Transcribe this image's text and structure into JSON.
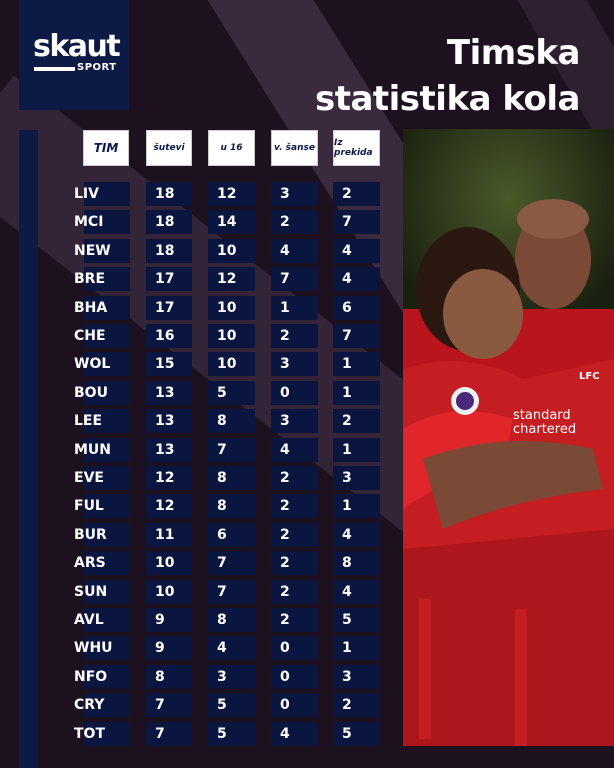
{
  "brand": {
    "name": "skaut",
    "sub": "SPORT"
  },
  "title": {
    "line1": "Timska",
    "line2": "statistika kola"
  },
  "headers": [
    "TIM",
    "šutevi",
    "u 16",
    "v. šanse",
    "Iz prekida"
  ],
  "rows": [
    {
      "team": "LIV",
      "shots": "18",
      "in16": "12",
      "chances": "3",
      "setpieces": "2"
    },
    {
      "team": "MCI",
      "shots": "18",
      "in16": "14",
      "chances": "2",
      "setpieces": "7"
    },
    {
      "team": "NEW",
      "shots": "18",
      "in16": "10",
      "chances": "4",
      "setpieces": "4"
    },
    {
      "team": "BRE",
      "shots": "17",
      "in16": "12",
      "chances": "7",
      "setpieces": "4"
    },
    {
      "team": "BHA",
      "shots": "17",
      "in16": "10",
      "chances": "1",
      "setpieces": "6"
    },
    {
      "team": "CHE",
      "shots": "16",
      "in16": "10",
      "chances": "2",
      "setpieces": "7"
    },
    {
      "team": "WOL",
      "shots": "15",
      "in16": "10",
      "chances": "3",
      "setpieces": "1"
    },
    {
      "team": "BOU",
      "shots": "13",
      "in16": "5",
      "chances": "0",
      "setpieces": "1"
    },
    {
      "team": "LEE",
      "shots": "13",
      "in16": "8",
      "chances": "3",
      "setpieces": "2"
    },
    {
      "team": "MUN",
      "shots": "13",
      "in16": "7",
      "chances": "4",
      "setpieces": "1"
    },
    {
      "team": "EVE",
      "shots": "12",
      "in16": "8",
      "chances": "2",
      "setpieces": "3"
    },
    {
      "team": "FUL",
      "shots": "12",
      "in16": "8",
      "chances": "2",
      "setpieces": "1"
    },
    {
      "team": "BUR",
      "shots": "11",
      "in16": "6",
      "chances": "2",
      "setpieces": "4"
    },
    {
      "team": "ARS",
      "shots": "10",
      "in16": "7",
      "chances": "2",
      "setpieces": "8"
    },
    {
      "team": "SUN",
      "shots": "10",
      "in16": "7",
      "chances": "2",
      "setpieces": "4"
    },
    {
      "team": "AVL",
      "shots": "9",
      "in16": "8",
      "chances": "2",
      "setpieces": "5"
    },
    {
      "team": "WHU",
      "shots": "9",
      "in16": "4",
      "chances": "0",
      "setpieces": "1"
    },
    {
      "team": "NFO",
      "shots": "8",
      "in16": "3",
      "chances": "0",
      "setpieces": "3"
    },
    {
      "team": "CRY",
      "shots": "7",
      "in16": "5",
      "chances": "0",
      "setpieces": "2"
    },
    {
      "team": "TOT",
      "shots": "7",
      "in16": "5",
      "chances": "4",
      "setpieces": "5"
    }
  ],
  "photo": {
    "jersey_sponsor_line1": "standard",
    "jersey_sponsor_line2": "chartered",
    "crest": "LFC"
  },
  "colors": {
    "navy": "#0b1640",
    "background": "#1d1120",
    "stripe": "#3a2a3d",
    "red": "#c01b20"
  }
}
